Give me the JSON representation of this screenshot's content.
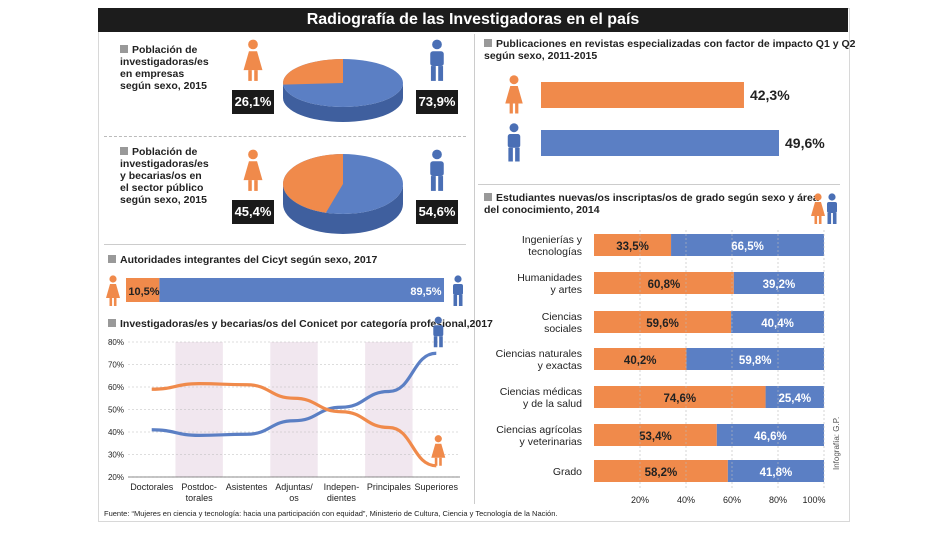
{
  "title": "Radiografía de las Investigadoras en el país",
  "colors": {
    "female": "#f08a4b",
    "male": "#5b7fc4",
    "female_icon": "#f08a4b",
    "male_icon": "#4a6fb5"
  },
  "source": "Fuente: “Mujeres en ciencia y tecnología: hacia una participación con equidad”, Ministerio de Cultura, Ciencia y Tecnología de la Nación.",
  "credit": "Infografía: G.P.",
  "chart_data": [
    {
      "type": "pie",
      "id": "empresas",
      "title": "Población de investigadoras/es en empresas según sexo, 2015",
      "title_lines": [
        "Población de",
        "investigadoras/es",
        "en empresas",
        "según sexo, 2015"
      ],
      "slices": [
        {
          "label": "Mujeres",
          "value": 26.1,
          "text": "26,1%"
        },
        {
          "label": "Varones",
          "value": 73.9,
          "text": "73,9%"
        }
      ]
    },
    {
      "type": "pie",
      "id": "publico",
      "title": "Población de investigadoras/es y becarias/os en el sector público según sexo, 2015",
      "title_lines": [
        "Población de",
        "investigadoras/es",
        "y becarias/os en",
        "el sector público",
        "según sexo, 2015"
      ],
      "slices": [
        {
          "label": "Mujeres",
          "value": 45.4,
          "text": "45,4%"
        },
        {
          "label": "Varones",
          "value": 54.6,
          "text": "54,6%"
        }
      ]
    },
    {
      "type": "bar",
      "id": "cicyt",
      "title": "Autoridades integrantes del Cicyt según sexo, 2017",
      "series": [
        {
          "name": "Mujeres",
          "value": 10.5,
          "text": "10,5%"
        },
        {
          "name": "Varones",
          "value": 89.5,
          "text": "89,5%"
        }
      ]
    },
    {
      "type": "line",
      "id": "conicet",
      "title": "Investigadoras/es y becarias/os del Conicet por categoría profesional,2017",
      "categories": [
        [
          "Doctorales"
        ],
        [
          "Postdoc-",
          "torales"
        ],
        [
          "Asistentes"
        ],
        [
          "Adjuntas/",
          "os"
        ],
        [
          "Indepen-",
          "dientes"
        ],
        [
          "Principales"
        ],
        [
          "Superiores"
        ]
      ],
      "series": [
        {
          "name": "Mujeres",
          "values": [
            59,
            61.5,
            61,
            55,
            49,
            42,
            25
          ]
        },
        {
          "name": "Varones",
          "values": [
            41,
            38.5,
            39,
            45,
            51,
            58,
            75
          ]
        }
      ],
      "y_ticks": [
        "80%",
        "70%",
        "60%",
        "50%",
        "40%",
        "30%",
        "20%"
      ],
      "ylim": [
        20,
        80
      ]
    },
    {
      "type": "bar",
      "id": "publicaciones",
      "title_lines": [
        "Publicaciones en revistas especializadas con factor de impacto Q1 y Q2",
        "según sexo, 2011-2015"
      ],
      "title": "Publicaciones en revistas especializadas con factor de impacto Q1 y Q2 según sexo, 2011-2015",
      "series": [
        {
          "name": "Mujeres",
          "value": 42.3,
          "text": "42,3%"
        },
        {
          "name": "Varones",
          "value": 49.6,
          "text": "49,6%"
        }
      ],
      "xlim": [
        0,
        60
      ]
    },
    {
      "type": "bar",
      "id": "estudiantes",
      "title_lines": [
        "Estudiantes nuevas/os inscriptas/os de grado según sexo y área",
        "del conocimiento, 2014"
      ],
      "title": "Estudiantes nuevas/os inscriptas/os de grado según sexo y área del conocimiento, 2014",
      "categories": [
        [
          "Ingenierías y",
          "tecnologías"
        ],
        [
          "Humanidades",
          "y artes"
        ],
        [
          "Ciencias",
          "sociales"
        ],
        [
          "Ciencias naturales",
          "y exactas"
        ],
        [
          "Ciencias médicas",
          "y de la salud"
        ],
        [
          "Ciencias agrícolas",
          "y veterinarias"
        ],
        [
          "Grado"
        ]
      ],
      "female": [
        33.5,
        60.8,
        59.6,
        40.2,
        74.6,
        53.4,
        58.2
      ],
      "male": [
        66.5,
        39.2,
        40.4,
        59.8,
        25.4,
        46.6,
        41.8
      ],
      "female_text": [
        "33,5%",
        "60,8%",
        "59,6%",
        "40,2%",
        "74,6%",
        "53,4%",
        "58,2%"
      ],
      "male_text": [
        "66,5%",
        "39,2%",
        "40,4%",
        "59,8%",
        "25,4%",
        "46,6%",
        "41,8%"
      ],
      "x_ticks": [
        "20%",
        "40%",
        "60%",
        "80%",
        "100%"
      ]
    }
  ]
}
